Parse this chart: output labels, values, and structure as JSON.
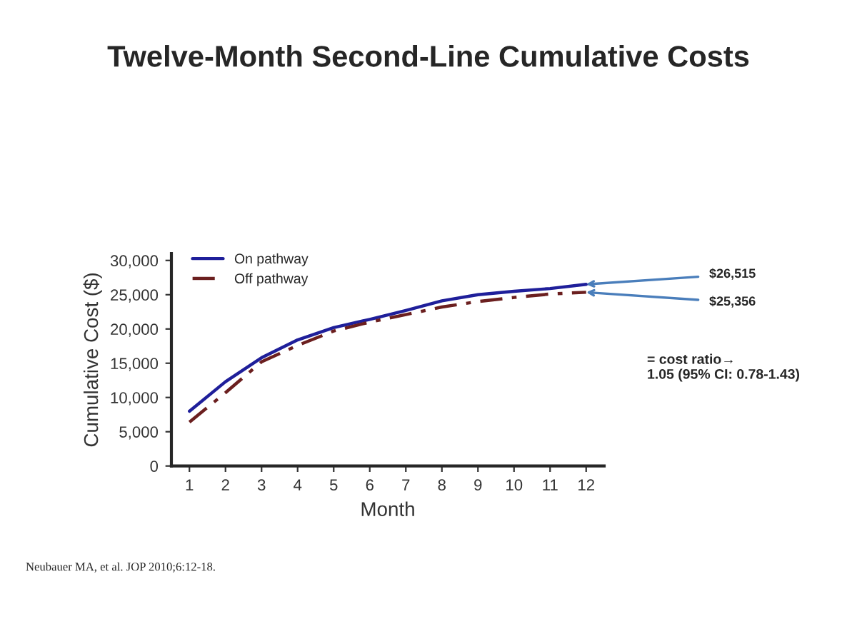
{
  "chart_data": {
    "type": "line",
    "title": "Twelve-Month Second-Line Cumulative Costs",
    "xlabel": "Month",
    "ylabel": "Cumulative Cost ($)",
    "x": [
      1,
      2,
      3,
      4,
      5,
      6,
      7,
      8,
      9,
      10,
      11,
      12
    ],
    "series": [
      {
        "name": "On pathway",
        "color": "#1f1f9a",
        "line_style": "solid",
        "values": [
          8000,
          12300,
          15800,
          18400,
          20200,
          21400,
          22700,
          24100,
          25000,
          25500,
          25900,
          26515
        ]
      },
      {
        "name": "Off pathway",
        "color": "#6b1f1f",
        "line_style": "dashed",
        "values": [
          6400,
          10700,
          15200,
          17600,
          19700,
          21000,
          22100,
          23200,
          24000,
          24600,
          25100,
          25356
        ]
      }
    ],
    "xlim": [
      0.5,
      12.5
    ],
    "xticks": [
      1,
      2,
      3,
      4,
      5,
      6,
      7,
      8,
      9,
      10,
      11,
      12
    ],
    "ylim": [
      0,
      31000
    ],
    "yticks": [
      0,
      {
        "value": 5000,
        "label": "5,000"
      },
      {
        "value": 10000,
        "label": "10,000"
      },
      {
        "value": 15000,
        "label": "15,000"
      },
      {
        "value": 20000,
        "label": "20,000"
      },
      {
        "value": 25000,
        "label": "25,000"
      },
      {
        "value": 30000,
        "label": "30,000"
      }
    ],
    "grid": false,
    "legend": "top left",
    "marker": "none",
    "annotations": [
      {
        "text": "$26,515",
        "x": 12,
        "y": 26515
      },
      {
        "text": "$25,356",
        "x": 12,
        "y": 25356
      },
      "= cost ratio→\n1.05 (95% CI: 0.78-1.43)",
      "Neubauer MA, et al. JOP 2010;6:12-18."
    ]
  }
}
